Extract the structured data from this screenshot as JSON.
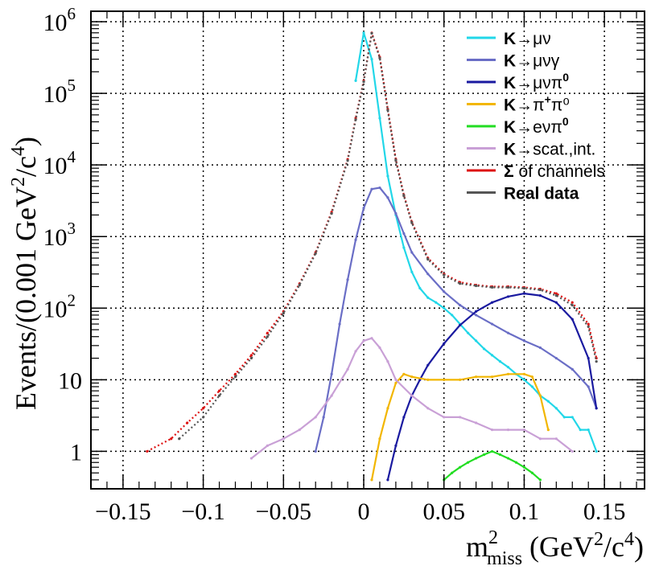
{
  "chart_data": {
    "type": "line",
    "title": "",
    "xlabel": "m²miss (GeV²/c⁴)",
    "xlabel_parts": {
      "main": "m",
      "sup": "2",
      "sub": "miss",
      "unit_open": " (GeV",
      "unit_sup1": "2",
      "unit_mid": "/c",
      "unit_sup2": "4",
      "unit_close": ")"
    },
    "ylabel": "Events/(0.001 GeV²/c⁴)",
    "ylabel_parts": {
      "main": "Events/(0.001 GeV",
      "sup1": "2",
      "mid": "/c",
      "sup2": "4",
      "close": ")"
    },
    "xlim": [
      -0.17,
      0.175
    ],
    "ylim": [
      0.3,
      1400000
    ],
    "yscale": "log",
    "grid": true,
    "legend_position": "top-right",
    "x_ticks": [
      {
        "value": -0.15,
        "label": "−0.15"
      },
      {
        "value": -0.1,
        "label": "−0.1"
      },
      {
        "value": -0.05,
        "label": "−0.05"
      },
      {
        "value": 0,
        "label": "0"
      },
      {
        "value": 0.05,
        "label": "0.05"
      },
      {
        "value": 0.1,
        "label": "0.1"
      },
      {
        "value": 0.15,
        "label": "0.15"
      }
    ],
    "y_ticks": [
      {
        "value": 1,
        "base": "1",
        "exp": ""
      },
      {
        "value": 10,
        "base": "10",
        "exp": ""
      },
      {
        "value": 100,
        "base": "10",
        "exp": "2"
      },
      {
        "value": 1000,
        "base": "10",
        "exp": "3"
      },
      {
        "value": 10000,
        "base": "10",
        "exp": "4"
      },
      {
        "value": 100000,
        "base": "10",
        "exp": "5"
      },
      {
        "value": 1000000,
        "base": "10",
        "exp": "6"
      }
    ],
    "series": [
      {
        "name": "K→μν",
        "label_k": "K",
        "label_rest": "→μν",
        "label_sup": "",
        "label_tail": "",
        "color": "#22d7e8",
        "x": [
          -0.005,
          0.0,
          0.005,
          0.01,
          0.015,
          0.02,
          0.025,
          0.03,
          0.035,
          0.04,
          0.045,
          0.05,
          0.055,
          0.06,
          0.065,
          0.07,
          0.075,
          0.08,
          0.085,
          0.09,
          0.095,
          0.1,
          0.105,
          0.11,
          0.115,
          0.12,
          0.125,
          0.13,
          0.135,
          0.14,
          0.145
        ],
        "y": [
          150000,
          700000,
          300000,
          45000,
          7000,
          2000,
          700,
          320,
          190,
          140,
          120,
          100,
          80,
          60,
          45,
          35,
          27,
          22,
          18,
          15,
          12,
          10,
          8,
          6,
          5,
          4,
          3,
          3,
          2,
          2,
          1
        ]
      },
      {
        "name": "K→μνγ",
        "label_k": "K",
        "label_rest": "→μνγ",
        "label_sup": "",
        "label_tail": "",
        "color": "#6a6ec6",
        "x": [
          -0.03,
          -0.025,
          -0.02,
          -0.015,
          -0.01,
          -0.005,
          0.0,
          0.005,
          0.01,
          0.015,
          0.02,
          0.025,
          0.03,
          0.04,
          0.05,
          0.06,
          0.07,
          0.08,
          0.09,
          0.1,
          0.11,
          0.12,
          0.13,
          0.14,
          0.145
        ],
        "y": [
          1,
          3,
          12,
          60,
          250,
          900,
          2500,
          4600,
          4800,
          3500,
          2100,
          1100,
          600,
          300,
          170,
          110,
          80,
          60,
          45,
          35,
          28,
          20,
          14,
          8,
          4
        ]
      },
      {
        "name": "K→μνπ0",
        "label_k": "K",
        "label_rest": "→μνπ",
        "label_sup": "0",
        "label_tail": "",
        "color": "#1a1aa0",
        "x": [
          0.015,
          0.02,
          0.025,
          0.03,
          0.035,
          0.04,
          0.05,
          0.06,
          0.07,
          0.08,
          0.09,
          0.1,
          0.11,
          0.12,
          0.13,
          0.14,
          0.145
        ],
        "y": [
          0.4,
          1.2,
          3,
          6,
          10,
          16,
          32,
          58,
          90,
          120,
          145,
          160,
          150,
          120,
          70,
          20,
          4
        ]
      },
      {
        "name": "K→π+π0",
        "label_k": "K",
        "label_rest": "→π",
        "label_sup": "+",
        "label_tail": "π⁰",
        "color": "#f2b600",
        "x": [
          0.005,
          0.01,
          0.015,
          0.02,
          0.025,
          0.03,
          0.04,
          0.05,
          0.06,
          0.07,
          0.08,
          0.09,
          0.1,
          0.105,
          0.11,
          0.115
        ],
        "y": [
          0.4,
          1.5,
          4,
          9,
          12,
          11,
          10,
          10,
          10,
          11,
          11,
          12,
          12,
          11,
          6,
          2
        ]
      },
      {
        "name": "K→eνπ0",
        "label_k": "K",
        "label_rest": "→eνπ",
        "label_sup": "0",
        "label_tail": "",
        "color": "#22dd22",
        "x": [
          0.05,
          0.055,
          0.06,
          0.065,
          0.07,
          0.075,
          0.08,
          0.085,
          0.09,
          0.095,
          0.1,
          0.105,
          0.11
        ],
        "y": [
          0.4,
          0.5,
          0.6,
          0.7,
          0.8,
          0.9,
          1.0,
          0.9,
          0.8,
          0.7,
          0.6,
          0.5,
          0.4
        ]
      },
      {
        "name": "K→scat.,int.",
        "label_k": "K",
        "label_rest": "→scat.,int.",
        "label_sup": "",
        "label_tail": "",
        "color": "#c9a0d6",
        "x": [
          -0.07,
          -0.06,
          -0.05,
          -0.04,
          -0.03,
          -0.02,
          -0.01,
          -0.005,
          0.0,
          0.005,
          0.01,
          0.015,
          0.02,
          0.03,
          0.04,
          0.05,
          0.06,
          0.07,
          0.08,
          0.09,
          0.1,
          0.11,
          0.12,
          0.13
        ],
        "y": [
          0.8,
          1.2,
          1.5,
          2,
          3,
          6,
          14,
          25,
          35,
          38,
          28,
          18,
          10,
          6,
          4,
          3,
          3,
          2.5,
          2,
          2,
          2,
          1.5,
          1.5,
          1
        ]
      },
      {
        "name": "Σ of channels",
        "label_k": "Σ",
        "label_rest": " of channels",
        "label_sup": "",
        "label_tail": "",
        "color": "#dd1111",
        "x": [
          -0.135,
          -0.12,
          -0.11,
          -0.1,
          -0.09,
          -0.08,
          -0.07,
          -0.06,
          -0.05,
          -0.04,
          -0.03,
          -0.02,
          -0.01,
          -0.005,
          0.0,
          0.005,
          0.01,
          0.015,
          0.02,
          0.025,
          0.03,
          0.04,
          0.05,
          0.06,
          0.07,
          0.08,
          0.09,
          0.1,
          0.11,
          0.12,
          0.13,
          0.14,
          0.145
        ],
        "y": [
          1,
          1.5,
          2.5,
          4,
          7,
          12,
          22,
          45,
          90,
          220,
          600,
          2200,
          12000,
          45000,
          150000,
          700000,
          320000,
          60000,
          12000,
          3800,
          1600,
          500,
          300,
          230,
          210,
          200,
          200,
          195,
          185,
          160,
          120,
          60,
          20
        ]
      },
      {
        "name": "Real data",
        "label_k": "Real data",
        "label_rest": "",
        "label_sup": "",
        "label_tail": "",
        "color": "#555555",
        "x": [
          -0.115,
          -0.1,
          -0.09,
          -0.08,
          -0.07,
          -0.06,
          -0.05,
          -0.04,
          -0.03,
          -0.02,
          -0.01,
          -0.005,
          0.0,
          0.005,
          0.01,
          0.015,
          0.02,
          0.025,
          0.03,
          0.04,
          0.05,
          0.06,
          0.07,
          0.08,
          0.09,
          0.1,
          0.11,
          0.12,
          0.13,
          0.14,
          0.145
        ],
        "y": [
          1.5,
          3,
          6,
          11,
          20,
          40,
          85,
          210,
          580,
          2100,
          11500,
          43000,
          145000,
          690000,
          310000,
          58000,
          11500,
          3700,
          1550,
          480,
          290,
          220,
          205,
          195,
          195,
          190,
          180,
          150,
          110,
          55,
          18
        ]
      }
    ]
  }
}
